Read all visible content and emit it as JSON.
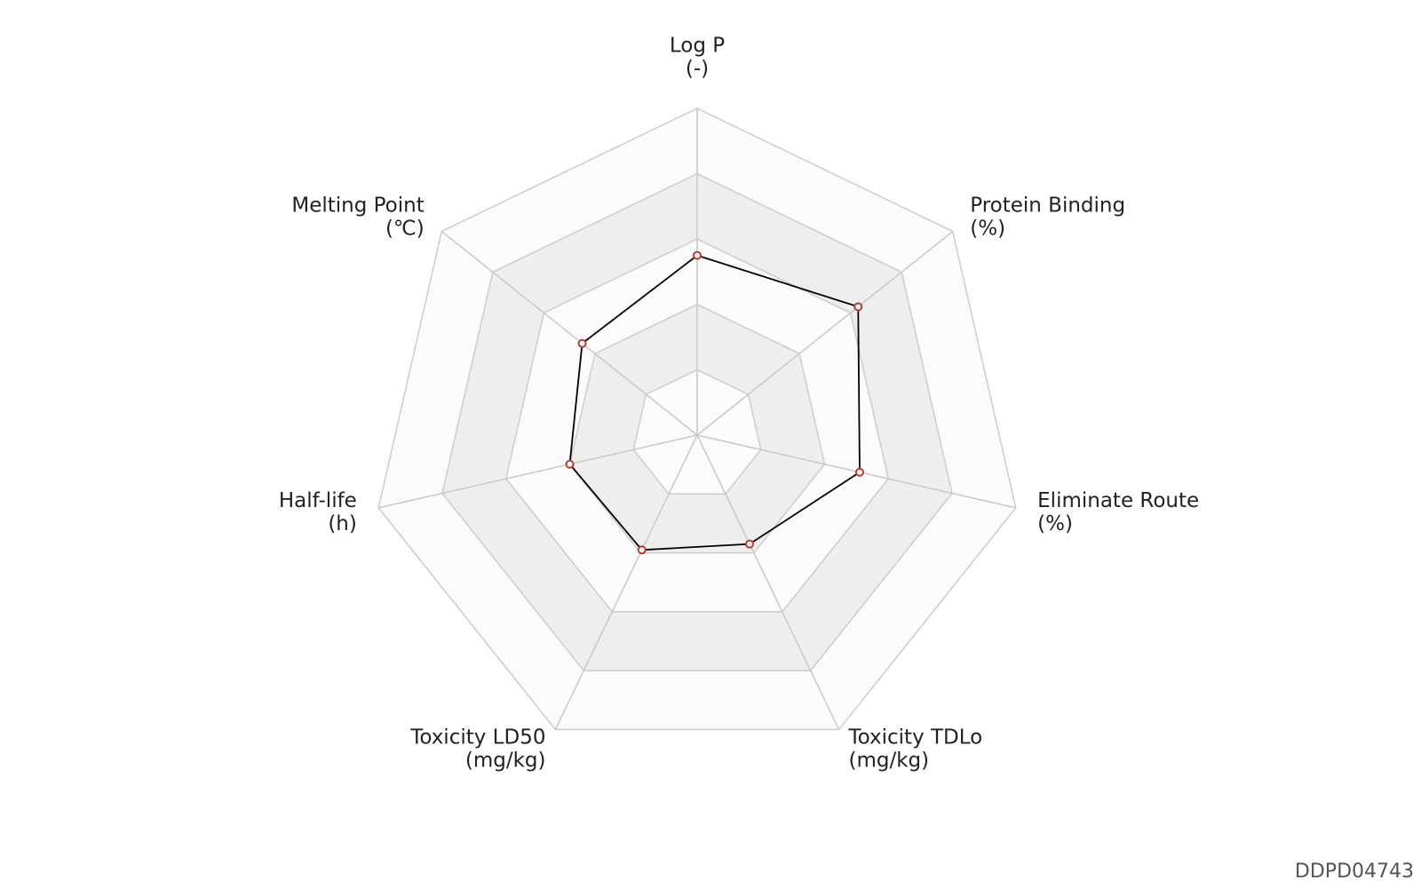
{
  "chart_data": {
    "type": "radar",
    "categories": [
      "Log P",
      "Protein Binding",
      "Eliminate Route",
      "Toxicity TDLo",
      "Toxicity LD50",
      "Half-life",
      "Melting Point"
    ],
    "units": [
      "(-)",
      "(%)",
      "(%)",
      "(mg/kg)",
      "(mg/kg)",
      "(h)",
      "(℃)"
    ],
    "values": [
      0.55,
      0.63,
      0.51,
      0.37,
      0.39,
      0.4,
      0.45
    ],
    "rlim": [
      0,
      1
    ],
    "rticks": [
      0.2,
      0.4,
      0.6,
      0.8,
      1.0
    ],
    "line_color": "#000000",
    "marker_color": "#c0392b",
    "band_colors": [
      "#ffffff",
      "#eeeeee"
    ],
    "watermark": "DDPD04743"
  }
}
